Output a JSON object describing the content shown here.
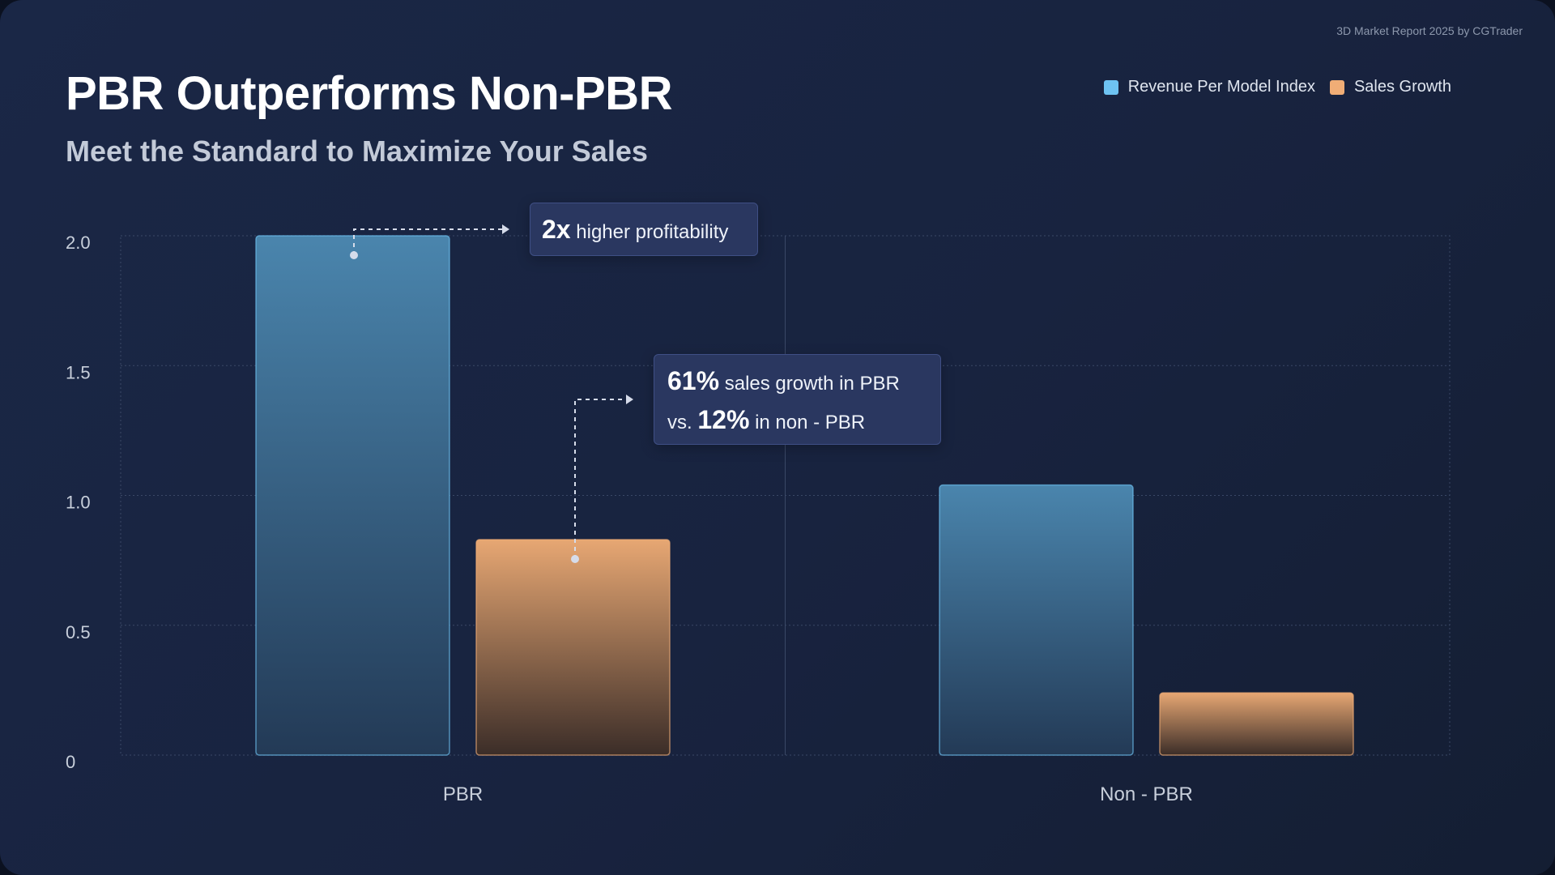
{
  "source": "3D Market Report 2025 by CGTrader",
  "title": "PBR Outperforms Non-PBR",
  "subtitle": "Meet the Standard to Maximize Your Sales",
  "legend": [
    {
      "label": "Revenue Per Model Index",
      "color": "#6ec3f2"
    },
    {
      "label": "Sales Growth",
      "color": "#f0ad76"
    }
  ],
  "callouts": {
    "profit_value": "2x",
    "profit_text": "higher profitability",
    "growth_value": "61%",
    "growth_text": "sales growth in PBR",
    "growth_vs": "vs.",
    "nonpbr_value": "12%",
    "nonpbr_text": "in non - PBR"
  },
  "colors": {
    "revenue": "#4a85ad",
    "sales": "#e7a773",
    "grid": "#3a4866",
    "axis_text": "#c8cfdb"
  },
  "chart_data": {
    "type": "bar",
    "categories": [
      "PBR",
      "Non - PBR"
    ],
    "series": [
      {
        "name": "Revenue Per Model Index",
        "values": [
          2.0,
          1.04
        ]
      },
      {
        "name": "Sales Growth",
        "values": [
          0.83,
          0.24
        ]
      }
    ],
    "yticks": [
      "0",
      "0.5",
      "1.0",
      "1.5",
      "2.0"
    ],
    "ylim": [
      0,
      2.0
    ],
    "grid": true,
    "legend_position": "top-right"
  }
}
